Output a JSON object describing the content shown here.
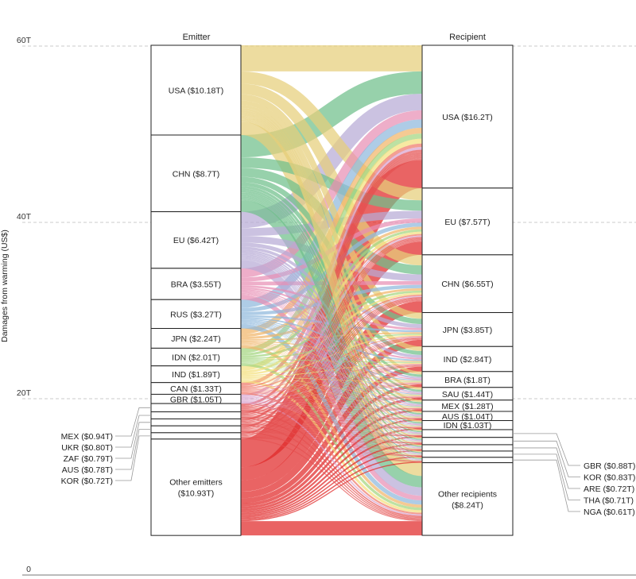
{
  "chart_data": {
    "type": "sankey",
    "title": "",
    "ylabel": "Damages from warming (US$)",
    "ylim": [
      0,
      60
    ],
    "yticks": [
      {
        "value": 0,
        "label": "0"
      },
      {
        "value": 20,
        "label": "20T"
      },
      {
        "value": 40,
        "label": "40T"
      },
      {
        "value": 60,
        "label": "60T"
      }
    ],
    "grid": true,
    "left_header": "Emitter",
    "right_header": "Recipient",
    "emitters": [
      {
        "name": "USA",
        "label": "USA ($10.18T)",
        "value": 10.18,
        "color": "#e6cf7a"
      },
      {
        "name": "CHN",
        "label": "CHN ($8.7T)",
        "value": 8.7,
        "color": "#6fbf8a"
      },
      {
        "name": "EU",
        "label": "EU ($6.42T)",
        "value": 6.42,
        "color": "#b7aad6"
      },
      {
        "name": "BRA",
        "label": "BRA ($3.55T)",
        "value": 3.55,
        "color": "#e88fb4"
      },
      {
        "name": "RUS",
        "label": "RUS ($3.27T)",
        "value": 3.27,
        "color": "#8fb8dd"
      },
      {
        "name": "JPN",
        "label": "JPN ($2.24T)",
        "value": 2.24,
        "color": "#f1b66a"
      },
      {
        "name": "IDN",
        "label": "IDN ($2.01T)",
        "value": 2.01,
        "color": "#a3d67f"
      },
      {
        "name": "IND",
        "label": "IND ($1.89T)",
        "value": 1.89,
        "color": "#f4e07e"
      },
      {
        "name": "CAN",
        "label": "CAN ($1.33T)",
        "value": 1.33,
        "color": "#f07a6a"
      },
      {
        "name": "GBR",
        "label": "GBR ($1.05T)",
        "value": 1.05,
        "color": "#d9a3cf"
      },
      {
        "name": "MEX",
        "label": "MEX ($0.94T)",
        "value": 0.94,
        "color": "#e45050"
      },
      {
        "name": "UKR",
        "label": "UKR ($0.80T)",
        "value": 0.8,
        "color": "#e45050"
      },
      {
        "name": "ZAF",
        "label": "ZAF ($0.79T)",
        "value": 0.79,
        "color": "#e45050"
      },
      {
        "name": "AUS",
        "label": "AUS ($0.78T)",
        "value": 0.78,
        "color": "#e45050"
      },
      {
        "name": "KOR",
        "label": "KOR ($0.72T)",
        "value": 0.72,
        "color": "#e45050"
      },
      {
        "name": "Other emitters",
        "label": "Other emitters ($10.93T)",
        "value": 10.93,
        "color": "#e02828"
      }
    ],
    "recipients": [
      {
        "name": "USA",
        "label": "USA ($16.2T)",
        "value": 16.2
      },
      {
        "name": "EU",
        "label": "EU ($7.57T)",
        "value": 7.57
      },
      {
        "name": "CHN",
        "label": "CHN ($6.55T)",
        "value": 6.55
      },
      {
        "name": "JPN",
        "label": "JPN ($3.85T)",
        "value": 3.85
      },
      {
        "name": "IND",
        "label": "IND ($2.84T)",
        "value": 2.84
      },
      {
        "name": "BRA",
        "label": "BRA ($1.8T)",
        "value": 1.8
      },
      {
        "name": "SAU",
        "label": "SAU ($1.44T)",
        "value": 1.44
      },
      {
        "name": "MEX",
        "label": "MEX ($1.28T)",
        "value": 1.28
      },
      {
        "name": "AUS",
        "label": "AUS ($1.04T)",
        "value": 1.04
      },
      {
        "name": "IDN",
        "label": "IDN ($1.03T)",
        "value": 1.03
      },
      {
        "name": "GBR",
        "label": "GBR ($0.88T)",
        "value": 0.88
      },
      {
        "name": "KOR",
        "label": "KOR ($0.83T)",
        "value": 0.83
      },
      {
        "name": "ARE",
        "label": "ARE ($0.72T)",
        "value": 0.72
      },
      {
        "name": "THA",
        "label": "THA ($0.71T)",
        "value": 0.71
      },
      {
        "name": "NGA",
        "label": "NGA ($0.61T)",
        "value": 0.61
      },
      {
        "name": "Other recipients",
        "label": "Other recipients ($8.24T)",
        "value": 8.24
      }
    ],
    "outside_left": [
      "MEX",
      "UKR",
      "ZAF",
      "AUS",
      "KOR"
    ],
    "outside_right": [
      "GBR",
      "KOR",
      "ARE",
      "THA",
      "NGA"
    ]
  }
}
